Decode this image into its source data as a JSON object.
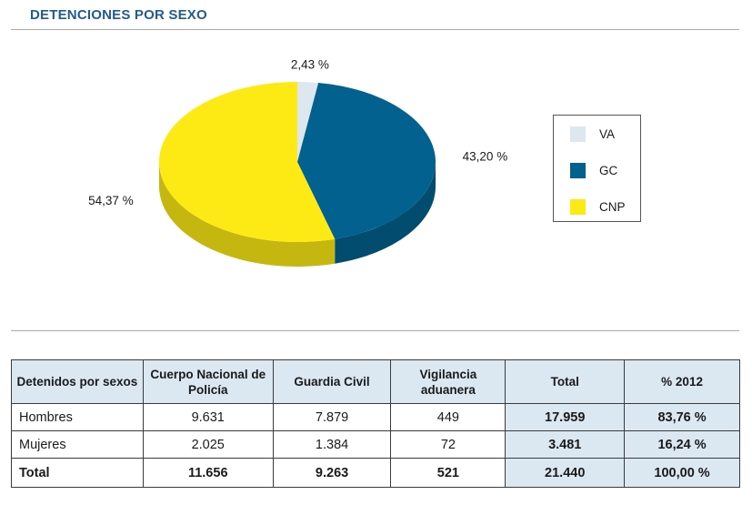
{
  "title": "DETENCIONES POR SEXO",
  "chart_data": {
    "type": "pie",
    "labels": [
      "VA",
      "GC",
      "CNP"
    ],
    "values": [
      2.43,
      43.2,
      54.37
    ],
    "value_labels": [
      "2,43 %",
      "43,20 %",
      "54,37 %"
    ],
    "colors": [
      "#dce7ef",
      "#02618f",
      "#fdea14"
    ],
    "legend_placement": "right"
  },
  "legend": [
    {
      "label": "VA",
      "color": "#dce7ef"
    },
    {
      "label": "GC",
      "color": "#02618f"
    },
    {
      "label": "CNP",
      "color": "#fdea14"
    }
  ],
  "table": {
    "headers": [
      "Detenidos por sexos",
      "Cuerpo Nacional de Policía",
      "Guardia Civil",
      "Vigilancia aduanera",
      "Total",
      "% 2012"
    ],
    "rows": [
      [
        "Hombres",
        "9.631",
        "7.879",
        "449",
        "17.959",
        "83,76 %"
      ],
      [
        "Mujeres",
        "2.025",
        "1.384",
        "72",
        "3.481",
        "16,24 %"
      ],
      [
        "Total",
        "11.656",
        "9.263",
        "521",
        "21.440",
        "100,00 %"
      ]
    ]
  }
}
